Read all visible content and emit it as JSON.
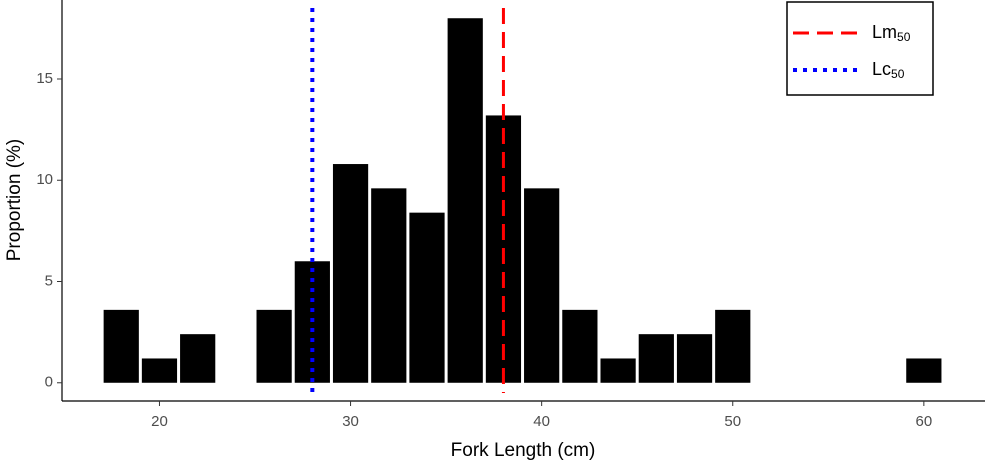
{
  "chart_data": {
    "type": "histogram",
    "xlabel": "Fork Length (cm)",
    "ylabel": "Proportion (%)",
    "bins": [
      17,
      19,
      21,
      23,
      25,
      27,
      29,
      31,
      33,
      35,
      37,
      39,
      41,
      43,
      45,
      47,
      49,
      51,
      53,
      55,
      57,
      59,
      61
    ],
    "counts": [
      3.6,
      1.2,
      2.4,
      0,
      3.6,
      6.0,
      10.8,
      9.6,
      8.4,
      18.0,
      13.2,
      9.6,
      3.6,
      1.2,
      2.4,
      2.4,
      3.6,
      0,
      0,
      0,
      0,
      1.2
    ],
    "color": "#000000",
    "xlim": [
      14.9,
      63.2
    ],
    "ylim": [
      -0.9,
      18.9
    ],
    "xticks": [
      20,
      30,
      40,
      50,
      60
    ],
    "yticks": [
      0,
      5,
      10,
      15
    ],
    "vlines": [
      {
        "name": "Lm",
        "subscript": "50",
        "x": 38,
        "color": "#ff0000",
        "style": "dashed"
      },
      {
        "name": "Lc",
        "subscript": "50",
        "x": 28,
        "color": "#0000ff",
        "style": "dotted"
      }
    ],
    "legend": "upper right"
  }
}
